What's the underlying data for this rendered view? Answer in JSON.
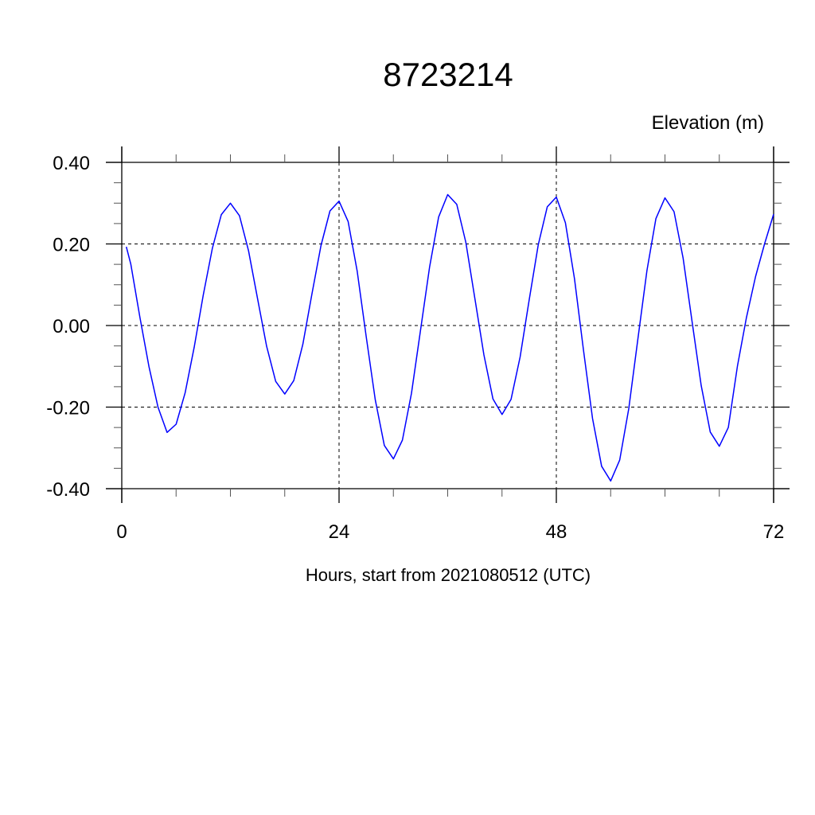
{
  "chart_data": {
    "type": "line",
    "title": "8723214",
    "subtitle": "Elevation (m)",
    "xlabel": "Hours, start from 2021080512 (UTC)",
    "ylabel": "",
    "xlim": [
      0,
      72
    ],
    "ylim": [
      -0.4,
      0.4
    ],
    "x_ticks": [
      0,
      24,
      48,
      72
    ],
    "x_tick_labels": [
      "0",
      "24",
      "48",
      "72"
    ],
    "x_minor_step": 6,
    "y_ticks": [
      0.4,
      0.2,
      0.0,
      -0.2,
      -0.4
    ],
    "y_tick_labels": [
      "0.40",
      "0.20",
      "0.00",
      "-0.20",
      "-0.40"
    ],
    "y_minor_step": 0.05,
    "grid": true,
    "line_color": "#0000ff",
    "series": [
      {
        "x": [
          0.5,
          1,
          2,
          3,
          4,
          5,
          6,
          7,
          8,
          9,
          10,
          11,
          12,
          13,
          14,
          15,
          16,
          17,
          18,
          19,
          20,
          21,
          22,
          23,
          24,
          25,
          26,
          27,
          28,
          29,
          30,
          31,
          32,
          33,
          34,
          35,
          36,
          37,
          38,
          39,
          40,
          41,
          42,
          43,
          44,
          45,
          46,
          47,
          48,
          49,
          50,
          51,
          52,
          53,
          54,
          55,
          56,
          57,
          58,
          59,
          60,
          61,
          62,
          63,
          64,
          65,
          66,
          67,
          68,
          69,
          70,
          71,
          72
        ],
        "y": [
          0.193,
          0.15,
          0.02,
          -0.1,
          -0.2,
          -0.262,
          -0.242,
          -0.165,
          -0.053,
          0.075,
          0.189,
          0.272,
          0.3,
          0.269,
          0.183,
          0.066,
          -0.051,
          -0.137,
          -0.168,
          -0.135,
          -0.046,
          0.077,
          0.196,
          0.281,
          0.305,
          0.255,
          0.133,
          -0.027,
          -0.182,
          -0.294,
          -0.327,
          -0.281,
          -0.166,
          -0.011,
          0.144,
          0.266,
          0.321,
          0.297,
          0.204,
          0.067,
          -0.072,
          -0.18,
          -0.218,
          -0.181,
          -0.077,
          0.063,
          0.198,
          0.291,
          0.315,
          0.252,
          0.115,
          -0.06,
          -0.228,
          -0.345,
          -0.381,
          -0.33,
          -0.204,
          -0.034,
          0.134,
          0.262,
          0.313,
          0.279,
          0.165,
          0.009,
          -0.147,
          -0.261,
          -0.296,
          -0.25,
          -0.1,
          0.02,
          0.12,
          0.2,
          0.273
        ]
      }
    ]
  }
}
